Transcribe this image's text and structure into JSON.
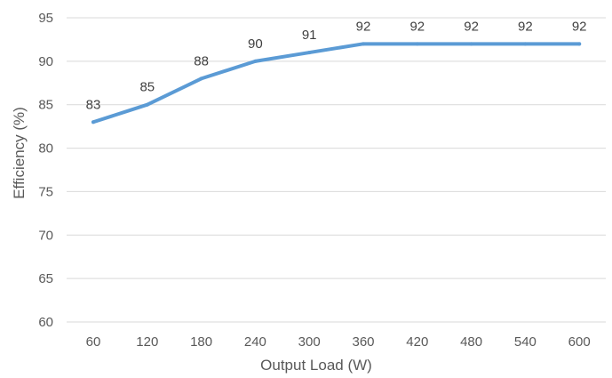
{
  "chart_data": {
    "type": "line",
    "title": "",
    "xlabel": "Output Load (W)",
    "ylabel": "Efficiency (%)",
    "categories": [
      "60",
      "120",
      "180",
      "240",
      "300",
      "360",
      "420",
      "480",
      "540",
      "600"
    ],
    "series": [
      {
        "values": [
          83,
          85,
          88,
          90,
          91,
          92,
          92,
          92,
          92,
          92
        ],
        "color": "#5b9bd5"
      }
    ],
    "data_labels": [
      "83",
      "85",
      "88",
      "90",
      "91",
      "92",
      "92",
      "92",
      "92",
      "92"
    ],
    "ylim": [
      60,
      95
    ],
    "yticks": [
      "60",
      "65",
      "70",
      "75",
      "80",
      "85",
      "90",
      "95"
    ],
    "grid": true,
    "legend": "none"
  }
}
